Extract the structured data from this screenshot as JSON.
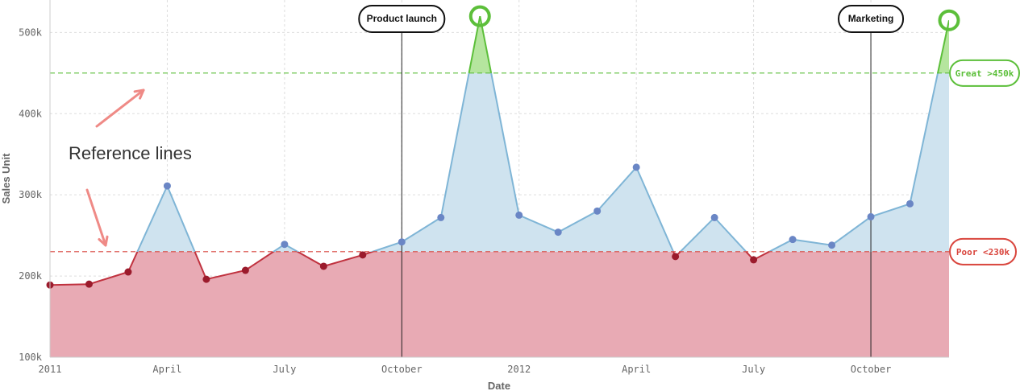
{
  "chart_data": {
    "type": "area",
    "title": "",
    "xlabel": "Date",
    "ylabel": "Sales Unit",
    "x_ticks": [
      "2011",
      "April",
      "July",
      "October",
      "2012",
      "April",
      "July",
      "October"
    ],
    "y_ticks": [
      "100k",
      "200k",
      "300k",
      "400k",
      "500k"
    ],
    "ylim": [
      100000,
      540000
    ],
    "x_range_months": [
      "2011-01",
      "2012-12"
    ],
    "grid": true,
    "x": [
      "2011-01",
      "2011-02",
      "2011-03",
      "2011-04",
      "2011-05",
      "2011-06",
      "2011-07",
      "2011-08",
      "2011-09",
      "2011-10",
      "2011-11",
      "2011-12",
      "2012-01",
      "2012-02",
      "2012-03",
      "2012-04",
      "2012-05",
      "2012-06",
      "2012-07",
      "2012-08",
      "2012-09",
      "2012-10",
      "2012-11",
      "2012-12"
    ],
    "values": [
      189000,
      190000,
      205000,
      311000,
      196000,
      207000,
      239000,
      212000,
      226000,
      242000,
      272000,
      520000,
      275000,
      254000,
      280000,
      334000,
      224000,
      272000,
      220000,
      245000,
      238000,
      273000,
      289000,
      515000
    ],
    "reference_lines": [
      {
        "label": "Great >450k",
        "value": 450000,
        "color": "#5cbf3a"
      },
      {
        "label": "Poor <230k",
        "value": 230000,
        "color": "#d9453d"
      }
    ],
    "events": [
      {
        "label": "Product launch",
        "x": "2011-10"
      },
      {
        "label": "Marketing",
        "x": "2012-10"
      }
    ],
    "annotation": "Reference lines",
    "colors": {
      "above": "#cfe3ef",
      "above_line": "#7fb5d6",
      "above_point": "#6a86c5",
      "below_fill": "#e8aab4",
      "below_line": "#c0323f",
      "below_point": "#9b1b2c",
      "great": "#5cbf3a",
      "great_fill": "#b5e59e",
      "poor": "#d9453d",
      "arrow": "#ef8a86"
    }
  }
}
